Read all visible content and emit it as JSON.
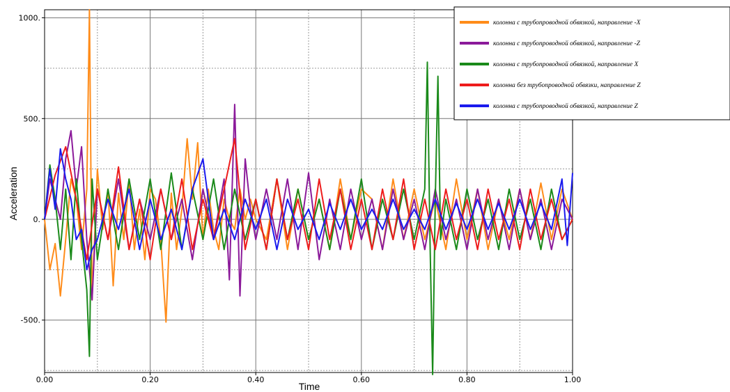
{
  "chart_data": {
    "type": "line",
    "xlabel": "Time",
    "ylabel": "Acceleration",
    "xlim": [
      0.0,
      1.0
    ],
    "ylim": [
      -760,
      1040
    ],
    "x_ticks": [
      "0.00",
      "0.20",
      "0.40",
      "0.60",
      "0.80",
      "1.00"
    ],
    "y_ticks": [
      "-500.",
      "0.",
      "500.",
      "1000."
    ],
    "grid": true,
    "legend_position": "top-right",
    "series": [
      {
        "name": "колонна с трубопроводной обвязкой, направление -X",
        "color": "#ff8c1a",
        "x": [
          0,
          0.01,
          0.02,
          0.03,
          0.04,
          0.05,
          0.06,
          0.07,
          0.08,
          0.085,
          0.09,
          0.1,
          0.11,
          0.12,
          0.13,
          0.14,
          0.15,
          0.16,
          0.17,
          0.18,
          0.19,
          0.2,
          0.21,
          0.22,
          0.23,
          0.24,
          0.25,
          0.26,
          0.27,
          0.28,
          0.29,
          0.3,
          0.31,
          0.32,
          0.33,
          0.34,
          0.35,
          0.36,
          0.37,
          0.38,
          0.39,
          0.4,
          0.42,
          0.44,
          0.46,
          0.48,
          0.5,
          0.52,
          0.54,
          0.56,
          0.58,
          0.6,
          0.62,
          0.64,
          0.66,
          0.68,
          0.7,
          0.72,
          0.74,
          0.76,
          0.78,
          0.8,
          0.82,
          0.84,
          0.86,
          0.88,
          0.9,
          0.92,
          0.94,
          0.96,
          0.98,
          1.0
        ],
        "values": [
          0,
          -250,
          -120,
          -380,
          -100,
          200,
          100,
          -150,
          150,
          1040,
          -400,
          250,
          -50,
          150,
          -330,
          130,
          -100,
          200,
          -150,
          50,
          -200,
          150,
          100,
          -100,
          -510,
          130,
          -150,
          50,
          400,
          100,
          380,
          -100,
          150,
          -50,
          -150,
          100,
          0,
          -50,
          150,
          0,
          100,
          0,
          -100,
          200,
          -150,
          150,
          -100,
          100,
          -150,
          200,
          -100,
          150,
          100,
          -150,
          200,
          -100,
          150,
          -100,
          100,
          -150,
          200,
          -100,
          150,
          -150,
          100,
          -100,
          150,
          -100,
          180,
          -100,
          150,
          0
        ]
      },
      {
        "name": "колонна с трубопроводной обвязкой, направление -Z",
        "color": "#8b1a9a",
        "x": [
          0,
          0.01,
          0.02,
          0.03,
          0.04,
          0.05,
          0.06,
          0.07,
          0.08,
          0.09,
          0.1,
          0.12,
          0.14,
          0.16,
          0.18,
          0.2,
          0.22,
          0.24,
          0.26,
          0.28,
          0.3,
          0.32,
          0.34,
          0.35,
          0.36,
          0.37,
          0.38,
          0.39,
          0.4,
          0.42,
          0.44,
          0.46,
          0.48,
          0.5,
          0.52,
          0.54,
          0.56,
          0.58,
          0.6,
          0.62,
          0.64,
          0.66,
          0.68,
          0.7,
          0.72,
          0.74,
          0.76,
          0.78,
          0.8,
          0.82,
          0.84,
          0.86,
          0.88,
          0.9,
          0.92,
          0.94,
          0.96,
          0.98,
          1.0
        ],
        "values": [
          0,
          200,
          100,
          0,
          300,
          440,
          150,
          360,
          -100,
          -400,
          150,
          -100,
          200,
          -150,
          100,
          -100,
          150,
          -100,
          100,
          -200,
          150,
          -100,
          200,
          -300,
          570,
          -380,
          300,
          50,
          -100,
          150,
          -100,
          200,
          -150,
          230,
          -200,
          100,
          -150,
          150,
          -100,
          100,
          -150,
          150,
          -100,
          100,
          -150,
          150,
          -100,
          100,
          -150,
          150,
          -100,
          100,
          -150,
          150,
          -100,
          100,
          -150,
          100,
          0
        ]
      },
      {
        "name": "колонна с трубопроводной обвязкой, направление X",
        "color": "#1a8a1a",
        "x": [
          0,
          0.01,
          0.02,
          0.03,
          0.04,
          0.05,
          0.06,
          0.07,
          0.08,
          0.085,
          0.09,
          0.1,
          0.12,
          0.14,
          0.16,
          0.18,
          0.2,
          0.22,
          0.24,
          0.26,
          0.28,
          0.3,
          0.32,
          0.34,
          0.36,
          0.38,
          0.4,
          0.42,
          0.44,
          0.46,
          0.48,
          0.5,
          0.52,
          0.54,
          0.56,
          0.58,
          0.6,
          0.62,
          0.64,
          0.66,
          0.68,
          0.7,
          0.72,
          0.725,
          0.73,
          0.735,
          0.74,
          0.745,
          0.75,
          0.76,
          0.78,
          0.8,
          0.82,
          0.84,
          0.86,
          0.88,
          0.9,
          0.92,
          0.94,
          0.96,
          0.98,
          1.0
        ],
        "values": [
          0,
          270,
          100,
          -150,
          150,
          -200,
          200,
          -100,
          -350,
          -680,
          200,
          -200,
          150,
          -150,
          200,
          -100,
          200,
          -150,
          230,
          -150,
          150,
          -100,
          200,
          -150,
          150,
          -100,
          100,
          -150,
          200,
          -100,
          150,
          -100,
          100,
          -150,
          150,
          -100,
          200,
          -150,
          100,
          -100,
          150,
          -100,
          150,
          780,
          -100,
          -770,
          100,
          710,
          -100,
          100,
          -150,
          150,
          -100,
          100,
          -150,
          150,
          -100,
          100,
          -150,
          150,
          -100,
          0
        ]
      },
      {
        "name": "колонна без трубопроводной обвязки, направление Z",
        "color": "#ee1c1c",
        "x": [
          0,
          0.02,
          0.04,
          0.06,
          0.08,
          0.1,
          0.12,
          0.14,
          0.16,
          0.18,
          0.2,
          0.22,
          0.24,
          0.26,
          0.28,
          0.3,
          0.32,
          0.34,
          0.36,
          0.38,
          0.4,
          0.42,
          0.44,
          0.46,
          0.48,
          0.5,
          0.52,
          0.54,
          0.56,
          0.58,
          0.6,
          0.62,
          0.64,
          0.66,
          0.68,
          0.7,
          0.72,
          0.74,
          0.76,
          0.78,
          0.8,
          0.82,
          0.84,
          0.86,
          0.88,
          0.9,
          0.92,
          0.94,
          0.96,
          0.98,
          1.0
        ],
        "values": [
          0,
          220,
          360,
          100,
          -200,
          150,
          -100,
          260,
          -150,
          100,
          -200,
          150,
          -100,
          200,
          -150,
          100,
          -100,
          150,
          400,
          -150,
          100,
          -150,
          200,
          -100,
          100,
          -150,
          200,
          -100,
          150,
          -150,
          100,
          -150,
          150,
          -100,
          200,
          -150,
          100,
          -150,
          150,
          -100,
          100,
          -150,
          150,
          -100,
          100,
          -150,
          150,
          -100,
          100,
          -100,
          0
        ]
      },
      {
        "name": "колонна с трубопроводной обвязкой, направление Z",
        "color": "#1a1aee",
        "x": [
          0,
          0.01,
          0.02,
          0.03,
          0.04,
          0.05,
          0.06,
          0.07,
          0.08,
          0.09,
          0.1,
          0.12,
          0.14,
          0.16,
          0.18,
          0.2,
          0.22,
          0.24,
          0.26,
          0.28,
          0.3,
          0.32,
          0.34,
          0.36,
          0.38,
          0.4,
          0.42,
          0.44,
          0.46,
          0.48,
          0.5,
          0.52,
          0.54,
          0.56,
          0.58,
          0.6,
          0.62,
          0.64,
          0.66,
          0.68,
          0.7,
          0.72,
          0.74,
          0.76,
          0.78,
          0.8,
          0.82,
          0.84,
          0.86,
          0.88,
          0.9,
          0.92,
          0.94,
          0.96,
          0.98,
          0.99,
          1.0
        ],
        "values": [
          0,
          250,
          50,
          350,
          200,
          100,
          -100,
          -50,
          -250,
          -150,
          -100,
          100,
          -50,
          150,
          -150,
          100,
          -100,
          50,
          -150,
          150,
          300,
          -100,
          50,
          -100,
          100,
          -50,
          100,
          -150,
          100,
          -50,
          50,
          -100,
          80,
          -50,
          100,
          -50,
          50,
          -50,
          100,
          -50,
          50,
          -50,
          100,
          -50,
          80,
          -50,
          100,
          -50,
          80,
          -50,
          100,
          -50,
          80,
          -50,
          200,
          -130,
          230
        ]
      }
    ]
  }
}
